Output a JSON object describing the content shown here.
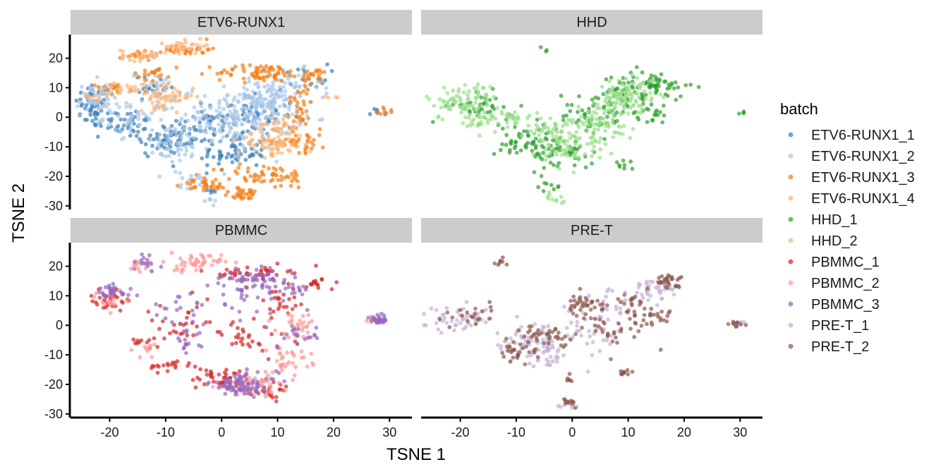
{
  "chart_data": {
    "type": "scatter",
    "xlabel": "TSNE 1",
    "ylabel": "TSNE 2",
    "xlim": [
      -27,
      34
    ],
    "ylim": [
      -31,
      28
    ],
    "x_ticks": [
      -20,
      -10,
      0,
      10,
      20,
      30
    ],
    "y_ticks": [
      -30,
      -20,
      -10,
      0,
      10,
      20
    ],
    "x_tick_labels": [
      "-20",
      "-10",
      "0",
      "10",
      "20",
      "30"
    ],
    "y_tick_labels": [
      "-30",
      "-20",
      "-10",
      "0",
      "10",
      "20"
    ],
    "grid": false,
    "legend_title": "batch",
    "legend_position": "right",
    "point_alpha": 0.7,
    "series": [
      {
        "name": "ETV6-RUNX1_1",
        "color": "#3b7fb9"
      },
      {
        "name": "ETV6-RUNX1_2",
        "color": "#a8c8e8"
      },
      {
        "name": "ETV6-RUNX1_3",
        "color": "#f57f17"
      },
      {
        "name": "ETV6-RUNX1_4",
        "color": "#fbb77c"
      },
      {
        "name": "HHD_1",
        "color": "#2ca02c"
      },
      {
        "name": "HHD_2",
        "color": "#98df8a"
      },
      {
        "name": "PBMMC_1",
        "color": "#d62728"
      },
      {
        "name": "PBMMC_2",
        "color": "#ff9896"
      },
      {
        "name": "PBMMC_3",
        "color": "#9467bd"
      },
      {
        "name": "PRE-T_1",
        "color": "#c5b0d5"
      },
      {
        "name": "PRE-T_2",
        "color": "#8c564b"
      }
    ],
    "panels": [
      {
        "title": "ETV6-RUNX1",
        "groups": [
          {
            "series": "ETV6-RUNX1_1",
            "clusters": [
              [
                -23,
                4,
                1.6,
                4,
                50
              ],
              [
                -17,
                -2,
                2.5,
                2.5,
                40
              ],
              [
                -10,
                -8,
                3,
                3,
                50
              ],
              [
                -4,
                -4,
                3,
                3,
                40
              ],
              [
                2,
                -12,
                3,
                3,
                60
              ],
              [
                5,
                0,
                4,
                4,
                70
              ],
              [
                -2,
                -24,
                1,
                1,
                6
              ],
              [
                -12,
                10,
                2,
                2,
                20
              ],
              [
                28,
                2,
                0.8,
                0.8,
                6
              ],
              [
                15,
                14,
                2,
                2,
                15
              ]
            ]
          },
          {
            "series": "ETV6-RUNX1_2",
            "clusters": [
              [
                -22,
                6,
                2,
                3,
                50
              ],
              [
                -15,
                0,
                3,
                3,
                50
              ],
              [
                -8,
                -10,
                3,
                3,
                50
              ],
              [
                3,
                0,
                5,
                5,
                200
              ],
              [
                8,
                6,
                3,
                3,
                70
              ],
              [
                12,
                10,
                3,
                3,
                40
              ],
              [
                -6,
                -22,
                2,
                2,
                15
              ],
              [
                -2,
                -28,
                1,
                1,
                6
              ],
              [
                -12,
                12,
                2,
                2,
                20
              ]
            ]
          },
          {
            "series": "ETV6-RUNX1_3",
            "clusters": [
              [
                -15,
                21,
                1.5,
                0.8,
                20
              ],
              [
                -6,
                23,
                2,
                1,
                30
              ],
              [
                7,
                15,
                4,
                1.5,
                70
              ],
              [
                8,
                -20,
                4,
                2,
                60
              ],
              [
                4,
                -26,
                2,
                1,
                30
              ],
              [
                -3,
                -23,
                2,
                1,
                30
              ],
              [
                17,
                14,
                1.5,
                1.2,
                20
              ],
              [
                14,
                4,
                1.2,
                4,
                30
              ],
              [
                14,
                -8,
                2.5,
                2,
                40
              ],
              [
                -20,
                10,
                1.5,
                1,
                15
              ],
              [
                -12,
                15,
                2,
                1.2,
                20
              ],
              [
                29,
                2,
                0.8,
                0.8,
                8
              ]
            ]
          },
          {
            "series": "ETV6-RUNX1_4",
            "clusters": [
              [
                -14,
                21,
                2,
                1,
                30
              ],
              [
                -6,
                24,
                2,
                1,
                30
              ],
              [
                -10,
                7,
                2.5,
                2,
                60
              ],
              [
                9,
                -9,
                3,
                2,
                60
              ],
              [
                10,
                -3,
                2,
                2,
                30
              ],
              [
                -17,
                10,
                2,
                1,
                20
              ],
              [
                -23,
                7,
                1,
                1,
                10
              ],
              [
                20,
                7,
                0.6,
                0.6,
                4
              ]
            ]
          }
        ]
      },
      {
        "title": "HHD",
        "groups": [
          {
            "series": "HHD_1",
            "clusters": [
              [
                -16,
                3,
                3,
                2.5,
                40
              ],
              [
                -8,
                -8,
                3,
                3,
                50
              ],
              [
                -2,
                -12,
                3,
                3,
                50
              ],
              [
                4,
                0,
                3,
                3,
                40
              ],
              [
                10,
                8,
                4,
                3,
                60
              ],
              [
                15,
                12,
                3,
                2,
                40
              ],
              [
                -4,
                -24,
                1,
                1,
                8
              ],
              [
                9,
                -16,
                1,
                1,
                8
              ],
              [
                -5,
                23,
                0.5,
                0.5,
                3
              ],
              [
                30,
                2,
                0.5,
                0.5,
                4
              ],
              [
                14,
                0,
                1.5,
                1.5,
                15
              ]
            ]
          },
          {
            "series": "HHD_2",
            "clusters": [
              [
                -20,
                5,
                3,
                3,
                60
              ],
              [
                -13,
                -1,
                3,
                2,
                50
              ],
              [
                -4,
                -4,
                2,
                2,
                40
              ],
              [
                0,
                -10,
                3,
                3,
                60
              ],
              [
                5,
                -2,
                3,
                3,
                60
              ],
              [
                8,
                5,
                3,
                3,
                70
              ],
              [
                12,
                10,
                2,
                2,
                30
              ],
              [
                -3,
                -27,
                1,
                0.8,
                10
              ],
              [
                -16,
                8,
                2,
                2,
                20
              ]
            ]
          }
        ]
      },
      {
        "title": "PBMMC",
        "groups": [
          {
            "series": "PBMMC_1",
            "clusters": [
              [
                -20,
                9,
                2,
                2,
                30
              ],
              [
                -9,
                -14,
                2,
                1,
                20
              ],
              [
                0,
                -18,
                3,
                2,
                40
              ],
              [
                6,
                18,
                3,
                1,
                40
              ],
              [
                -8,
                0,
                4,
                4,
                30
              ],
              [
                4,
                -5,
                4,
                4,
                30
              ],
              [
                11,
                8,
                3,
                3,
                25
              ],
              [
                17,
                14,
                1.5,
                1,
                15
              ],
              [
                -14,
                -6,
                1,
                1,
                10
              ],
              [
                9,
                -22,
                2,
                1.5,
                20
              ]
            ]
          },
          {
            "series": "PBMMC_2",
            "clusters": [
              [
                -5,
                21,
                2.5,
                1.5,
                50
              ],
              [
                -20,
                9,
                2,
                2,
                20
              ],
              [
                6,
                -20,
                3,
                2,
                50
              ],
              [
                12,
                -12,
                2,
                2,
                30
              ],
              [
                14,
                0,
                2,
                2,
                30
              ],
              [
                -13,
                -8,
                1.5,
                1.5,
                10
              ],
              [
                27,
                2,
                1,
                1,
                15
              ],
              [
                -15,
                20,
                1.5,
                1.5,
                10
              ]
            ]
          },
          {
            "series": "PBMMC_3",
            "clusters": [
              [
                -20,
                11,
                2,
                1.2,
                30
              ],
              [
                4,
                -20,
                3,
                2,
                80
              ],
              [
                6,
                16,
                3,
                1.5,
                50
              ],
              [
                -14,
                21,
                1.5,
                1.5,
                15
              ],
              [
                -8,
                5,
                3,
                3,
                20
              ],
              [
                4,
                10,
                3,
                3,
                25
              ],
              [
                12,
                12,
                2,
                2,
                20
              ],
              [
                14,
                -4,
                2,
                2,
                20
              ],
              [
                28,
                2,
                0.8,
                0.8,
                25
              ],
              [
                -6,
                -6,
                2,
                2,
                15
              ]
            ]
          }
        ]
      },
      {
        "title": "PRE-T",
        "groups": [
          {
            "series": "PRE-T_1",
            "clusters": [
              [
                -20,
                2,
                3,
                2,
                50
              ],
              [
                -8,
                -6,
                3,
                3,
                50
              ],
              [
                -4,
                -10,
                2,
                2,
                30
              ],
              [
                2,
                -2,
                4,
                4,
                40
              ],
              [
                14,
                12,
                3,
                2,
                40
              ],
              [
                7,
                6,
                3,
                2,
                20
              ],
              [
                -1,
                -28,
                0.8,
                0.5,
                5
              ],
              [
                30,
                1,
                0.5,
                0.5,
                4
              ]
            ]
          },
          {
            "series": "PRE-T_2",
            "clusters": [
              [
                -13,
                21,
                0.5,
                0.8,
                8
              ],
              [
                -17,
                4,
                2,
                2,
                20
              ],
              [
                -10,
                -9,
                2,
                1.5,
                25
              ],
              [
                -5,
                -4,
                2,
                2,
                40
              ],
              [
                2,
                7,
                2,
                2,
                40
              ],
              [
                8,
                -2,
                3,
                3,
                30
              ],
              [
                15,
                3,
                1.5,
                1.5,
                20
              ],
              [
                17,
                15,
                1.5,
                1,
                30
              ],
              [
                10,
                8,
                2,
                2,
                20
              ],
              [
                -1,
                -18,
                0.5,
                0.8,
                6
              ],
              [
                9,
                -16,
                1,
                0.5,
                10
              ],
              [
                0,
                -26,
                0.8,
                0.6,
                12
              ],
              [
                29,
                1,
                0.8,
                0.8,
                10
              ]
            ]
          }
        ]
      }
    ]
  }
}
